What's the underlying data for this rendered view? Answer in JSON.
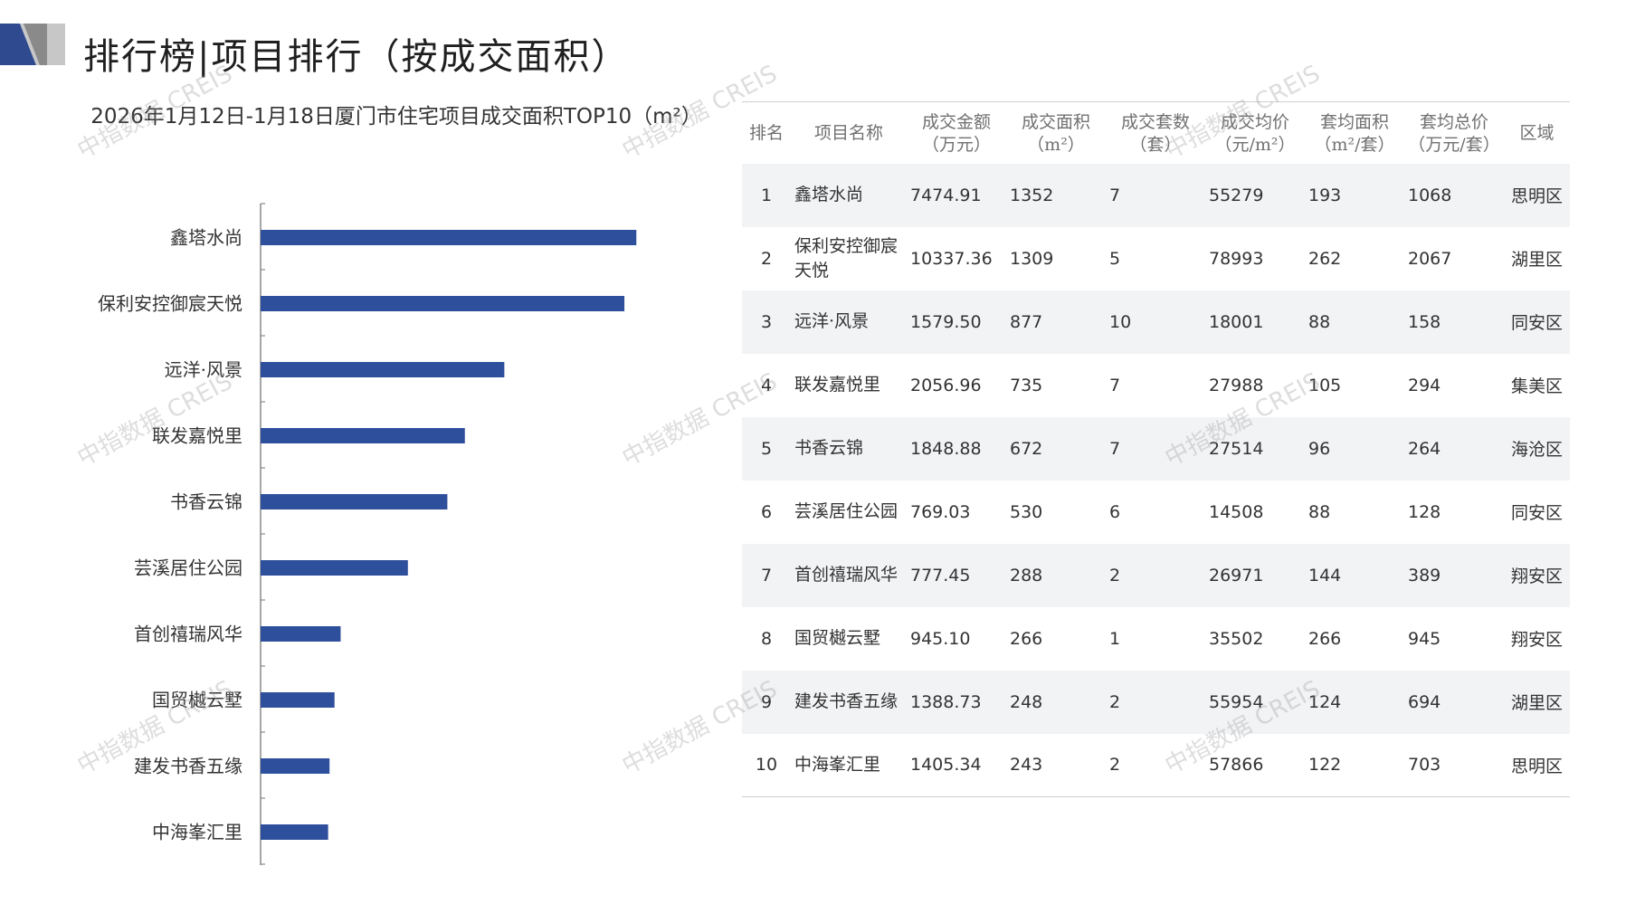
{
  "page": {
    "title": "排行榜|项目排行（按成交面积）"
  },
  "colors": {
    "bar": "#2e4f9b",
    "accent_dark": "#2f4a8f",
    "accent_gray": "#c7c7c7"
  },
  "chart_data": {
    "type": "bar",
    "orientation": "horizontal",
    "title": "2026年1月12日-1月18日厦门市住宅项目成交面积TOP10（m²）",
    "categories": [
      "鑫塔水尚",
      "保利安控御宸天悦",
      "远洋·风景",
      "联发嘉悦里",
      "书香云锦",
      "芸溪居住公园",
      "首创禧瑞风华",
      "国贸樾云墅",
      "建发书香五缘",
      "中海峯汇里"
    ],
    "values": [
      1352,
      1309,
      877,
      735,
      672,
      530,
      288,
      266,
      248,
      243
    ],
    "xlim": [
      0,
      1400
    ],
    "grid": false,
    "legend": "none"
  },
  "table": {
    "headers": [
      [
        "排名"
      ],
      [
        "项目名称"
      ],
      [
        "成交金额",
        "（万元）"
      ],
      [
        "成交面积",
        "（m²）"
      ],
      [
        "成交套数",
        "（套）"
      ],
      [
        "成交均价",
        "（元/m²）"
      ],
      [
        "套均面积",
        "（m²/套）"
      ],
      [
        "套均总价",
        "（万元/套）"
      ],
      [
        "区域"
      ]
    ],
    "rows": [
      [
        "1",
        "鑫塔水尚",
        "7474.91",
        "1352",
        "7",
        "55279",
        "193",
        "1068",
        "思明区"
      ],
      [
        "2",
        "保利安控御宸天悦",
        "10337.36",
        "1309",
        "5",
        "78993",
        "262",
        "2067",
        "湖里区"
      ],
      [
        "3",
        "远洋·风景",
        "1579.50",
        "877",
        "10",
        "18001",
        "88",
        "158",
        "同安区"
      ],
      [
        "4",
        "联发嘉悦里",
        "2056.96",
        "735",
        "7",
        "27988",
        "105",
        "294",
        "集美区"
      ],
      [
        "5",
        "书香云锦",
        "1848.88",
        "672",
        "7",
        "27514",
        "96",
        "264",
        "海沧区"
      ],
      [
        "6",
        "芸溪居住公园",
        "769.03",
        "530",
        "6",
        "14508",
        "88",
        "128",
        "同安区"
      ],
      [
        "7",
        "首创禧瑞风华",
        "777.45",
        "288",
        "2",
        "26971",
        "144",
        "389",
        "翔安区"
      ],
      [
        "8",
        "国贸樾云墅",
        "945.10",
        "266",
        "1",
        "35502",
        "266",
        "945",
        "翔安区"
      ],
      [
        "9",
        "建发书香五缘",
        "1388.73",
        "248",
        "2",
        "55954",
        "124",
        "694",
        "湖里区"
      ],
      [
        "10",
        "中海峯汇里",
        "1405.34",
        "243",
        "2",
        "57866",
        "122",
        "703",
        "思明区"
      ]
    ]
  },
  "watermark": "中指数据 CREIS"
}
